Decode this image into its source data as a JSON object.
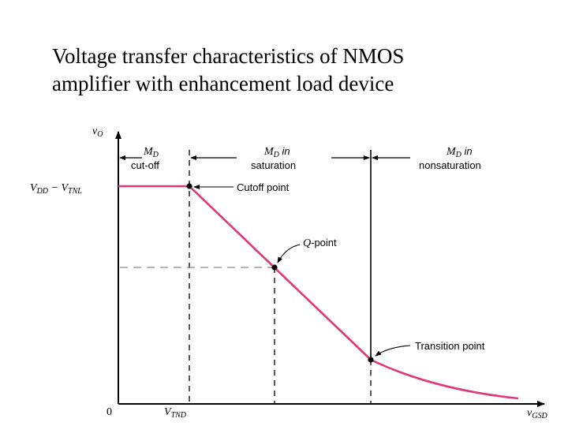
{
  "title_line1": "Voltage transfer characteristics of NMOS",
  "title_line2": "amplifier with enhancement load device",
  "colors": {
    "curve": "#e0367a",
    "ink": "#000000",
    "dashed": "#888888"
  },
  "axes": {
    "y_label_main": "v",
    "y_label_sub": "O",
    "x_label_main": "v",
    "x_label_sub": "GSD",
    "origin": "0",
    "y_level_main": "V",
    "y_level_sub1": "DD",
    "y_level_dash": " − V",
    "y_level_sub2": "TNL",
    "x_tick_main": "V",
    "x_tick_sub": "TND"
  },
  "regions": {
    "cutoff": {
      "m": "M",
      "sub": "D",
      "text": "cut-off"
    },
    "saturation": {
      "m": "M",
      "sub": "D",
      "in": " in",
      "text": "saturation"
    },
    "nonsaturation": {
      "m": "M",
      "sub": "D",
      "in": " in",
      "text": "nonsaturation"
    }
  },
  "annotations": {
    "cutoff_point": "Cutoff point",
    "q_point_main": "Q",
    "q_point_rest": "-point",
    "transition_point": "Transition point"
  }
}
